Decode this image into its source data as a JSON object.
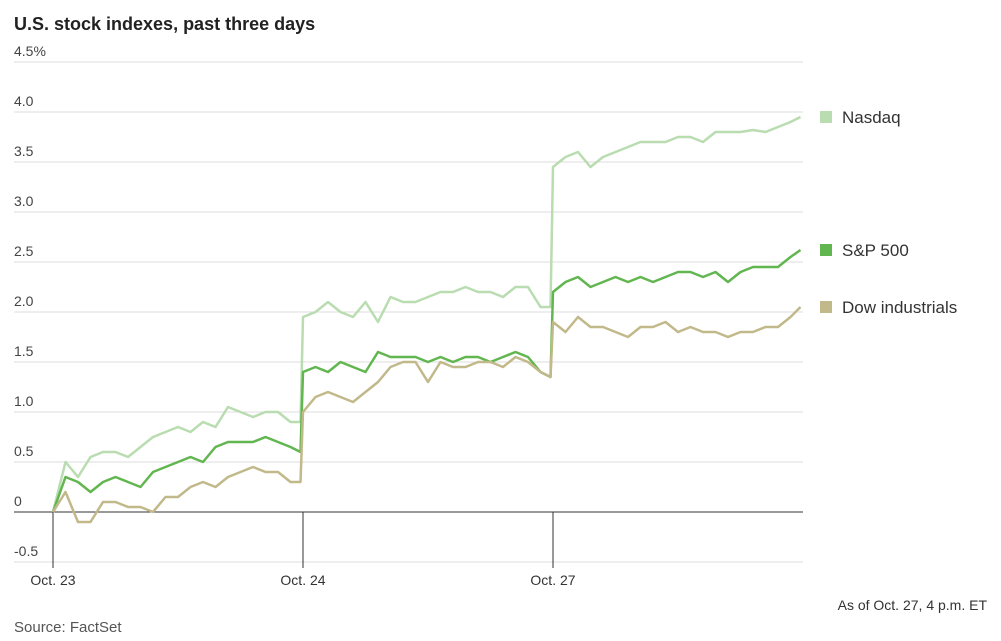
{
  "chart_data": {
    "type": "line",
    "title": "U.S. stock indexes, past three days",
    "source": "Source: FactSet",
    "note": "As of Oct. 27, 4 p.m. ET",
    "x": [
      0,
      0.05,
      0.1,
      0.15,
      0.2,
      0.25,
      0.3,
      0.35,
      0.4,
      0.45,
      0.5,
      0.55,
      0.6,
      0.65,
      0.7,
      0.75,
      0.8,
      0.85,
      0.9,
      0.95,
      0.99,
      1,
      1.05,
      1.1,
      1.15,
      1.2,
      1.25,
      1.3,
      1.35,
      1.4,
      1.45,
      1.5,
      1.55,
      1.6,
      1.65,
      1.7,
      1.75,
      1.8,
      1.85,
      1.9,
      1.95,
      1.99,
      2,
      2.05,
      2.1,
      2.15,
      2.2,
      2.25,
      2.3,
      2.35,
      2.4,
      2.45,
      2.5,
      2.55,
      2.6,
      2.65,
      2.7,
      2.75,
      2.8,
      2.85,
      2.9,
      2.95,
      2.99
    ],
    "series": [
      {
        "name": "Nasdaq",
        "color": "#b9dcb0",
        "values": [
          0,
          0.5,
          0.35,
          0.55,
          0.6,
          0.6,
          0.55,
          0.65,
          0.75,
          0.8,
          0.85,
          0.8,
          0.9,
          0.85,
          1.05,
          1.0,
          0.95,
          1.0,
          1.0,
          0.9,
          0.9,
          1.95,
          2.0,
          2.1,
          2.0,
          1.95,
          2.1,
          1.9,
          2.15,
          2.1,
          2.1,
          2.15,
          2.2,
          2.2,
          2.25,
          2.2,
          2.2,
          2.15,
          2.25,
          2.25,
          2.05,
          2.05,
          3.45,
          3.55,
          3.6,
          3.45,
          3.55,
          3.6,
          3.65,
          3.7,
          3.7,
          3.7,
          3.75,
          3.75,
          3.7,
          3.8,
          3.8,
          3.8,
          3.82,
          3.8,
          3.85,
          3.9,
          3.95
        ]
      },
      {
        "name": "S&P 500",
        "color": "#62b650",
        "values": [
          0,
          0.35,
          0.3,
          0.2,
          0.3,
          0.35,
          0.3,
          0.25,
          0.4,
          0.45,
          0.5,
          0.55,
          0.5,
          0.65,
          0.7,
          0.7,
          0.7,
          0.75,
          0.7,
          0.65,
          0.6,
          1.4,
          1.45,
          1.4,
          1.5,
          1.45,
          1.4,
          1.6,
          1.55,
          1.55,
          1.55,
          1.5,
          1.55,
          1.5,
          1.55,
          1.55,
          1.5,
          1.55,
          1.6,
          1.55,
          1.4,
          1.35,
          2.2,
          2.3,
          2.35,
          2.25,
          2.3,
          2.35,
          2.3,
          2.35,
          2.3,
          2.35,
          2.4,
          2.4,
          2.35,
          2.4,
          2.3,
          2.4,
          2.45,
          2.45,
          2.45,
          2.55,
          2.62
        ]
      },
      {
        "name": "Dow industrials",
        "color": "#c2b98a",
        "values": [
          0,
          0.2,
          -0.1,
          -0.1,
          0.1,
          0.1,
          0.05,
          0.05,
          0,
          0.15,
          0.15,
          0.25,
          0.3,
          0.25,
          0.35,
          0.4,
          0.45,
          0.4,
          0.4,
          0.3,
          0.3,
          1.0,
          1.15,
          1.2,
          1.15,
          1.1,
          1.2,
          1.3,
          1.45,
          1.5,
          1.5,
          1.3,
          1.5,
          1.45,
          1.45,
          1.5,
          1.5,
          1.45,
          1.55,
          1.5,
          1.4,
          1.35,
          1.9,
          1.8,
          1.95,
          1.85,
          1.85,
          1.8,
          1.75,
          1.85,
          1.85,
          1.9,
          1.8,
          1.85,
          1.8,
          1.8,
          1.75,
          1.8,
          1.8,
          1.85,
          1.85,
          1.95,
          2.05
        ]
      }
    ],
    "xlim": [
      0,
      3
    ],
    "xticks": [
      {
        "value": 0,
        "label": "Oct. 23"
      },
      {
        "value": 1,
        "label": "Oct. 24"
      },
      {
        "value": 2,
        "label": "Oct. 27"
      }
    ],
    "ylim": [
      -0.5,
      4.5
    ],
    "yticks": [
      -0.5,
      0,
      0.5,
      {
        "value": 1,
        "label": "1.0"
      },
      1.5,
      {
        "value": 2,
        "label": "2.0"
      },
      2.5,
      {
        "value": 3,
        "label": "3.0"
      },
      3.5,
      {
        "value": 4,
        "label": "4.0"
      },
      {
        "value": 4.5,
        "label": "4.5%"
      }
    ],
    "grid": true
  }
}
